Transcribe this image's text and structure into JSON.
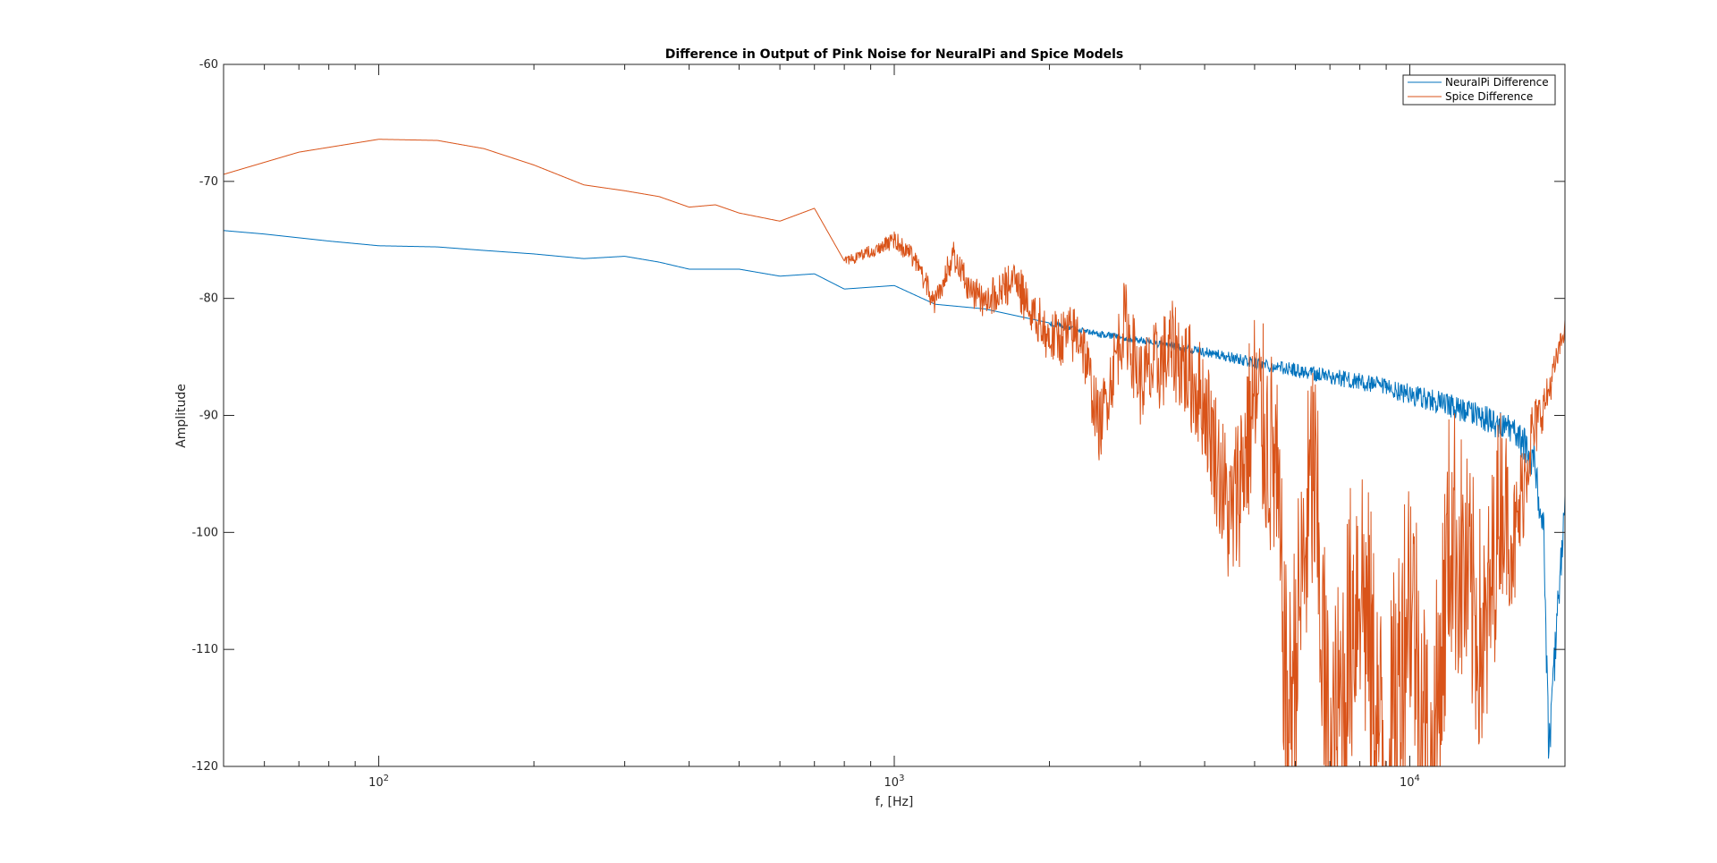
{
  "chart_data": {
    "type": "line",
    "title": "Difference in Output of Pink Noise for NeuralPi and Spice Models",
    "xlabel": "f, [Hz]",
    "ylabel": "Amplitude",
    "xscale": "log",
    "xlim": [
      50,
      20000
    ],
    "ylim": [
      -120,
      -60
    ],
    "y_ticks": [
      -120,
      -110,
      -100,
      -90,
      -80,
      -70,
      -60
    ],
    "y_tick_labels": [
      "-120",
      "-110",
      "-100",
      "-90",
      "-80",
      "-70",
      "-60"
    ],
    "x_major_ticks": [
      {
        "value": 100,
        "base": "10",
        "exp": "2"
      },
      {
        "value": 1000,
        "base": "10",
        "exp": "3"
      },
      {
        "value": 10000,
        "base": "10",
        "exp": "4"
      }
    ],
    "grid": false,
    "legend_position": "top-right",
    "series": [
      {
        "name": "NeuralPi Difference",
        "color": "#0072BD",
        "points": [
          [
            50,
            -74.2
          ],
          [
            60,
            -74.5
          ],
          [
            80,
            -75.1
          ],
          [
            100,
            -75.5
          ],
          [
            130,
            -75.6
          ],
          [
            160,
            -75.9
          ],
          [
            200,
            -76.2
          ],
          [
            250,
            -76.6
          ],
          [
            300,
            -76.4
          ],
          [
            350,
            -76.9
          ],
          [
            400,
            -77.5
          ],
          [
            500,
            -77.5
          ],
          [
            600,
            -78.1
          ],
          [
            700,
            -77.9
          ],
          [
            800,
            -79.2
          ],
          [
            1000,
            -78.9
          ],
          [
            1200,
            -80.5
          ],
          [
            1500,
            -80.9
          ],
          [
            2000,
            -82.1
          ],
          [
            2500,
            -83.0
          ],
          [
            3000,
            -83.5
          ],
          [
            4000,
            -84.5
          ],
          [
            5000,
            -85.4
          ],
          [
            6000,
            -86.0
          ],
          [
            8000,
            -87.0
          ],
          [
            10000,
            -88.0
          ],
          [
            12000,
            -89.0
          ],
          [
            14000,
            -90.0
          ],
          [
            16000,
            -91.2
          ],
          [
            17500,
            -93.5
          ],
          [
            18200,
            -100.0
          ],
          [
            18600,
            -118.5
          ],
          [
            19000,
            -112.0
          ],
          [
            19500,
            -104.0
          ],
          [
            20000,
            -97.5
          ]
        ],
        "noise_amplitude_db": [
          [
            2000,
            0.2
          ],
          [
            5000,
            0.5
          ],
          [
            10000,
            0.9
          ],
          [
            16000,
            1.3
          ],
          [
            17500,
            2.0
          ]
        ]
      },
      {
        "name": "Spice Difference",
        "color": "#D95319",
        "points": [
          [
            50,
            -69.4
          ],
          [
            70,
            -67.5
          ],
          [
            100,
            -66.4
          ],
          [
            130,
            -66.5
          ],
          [
            160,
            -67.2
          ],
          [
            200,
            -68.6
          ],
          [
            250,
            -70.3
          ],
          [
            300,
            -70.8
          ],
          [
            350,
            -71.3
          ],
          [
            400,
            -72.2
          ],
          [
            450,
            -72.0
          ],
          [
            500,
            -72.7
          ],
          [
            600,
            -73.4
          ],
          [
            700,
            -72.3
          ],
          [
            800,
            -76.8
          ],
          [
            900,
            -75.9
          ],
          [
            1000,
            -74.8
          ],
          [
            1100,
            -76.5
          ],
          [
            1200,
            -80.3
          ],
          [
            1300,
            -76.0
          ],
          [
            1400,
            -79.0
          ],
          [
            1500,
            -80.0
          ],
          [
            1700,
            -78.0
          ],
          [
            2000,
            -83.0
          ],
          [
            2300,
            -82.5
          ],
          [
            2500,
            -90.5
          ],
          [
            2800,
            -81.0
          ],
          [
            3000,
            -86.5
          ],
          [
            3500,
            -83.5
          ],
          [
            4000,
            -88.0
          ],
          [
            4500,
            -98.0
          ],
          [
            5000,
            -87.0
          ],
          [
            5500,
            -93.0
          ],
          [
            5800,
            -114.5
          ],
          [
            6500,
            -92.0
          ],
          [
            7000,
            -119.0
          ],
          [
            8000,
            -100.0
          ],
          [
            9000,
            -119.5
          ],
          [
            10000,
            -101.0
          ],
          [
            11000,
            -120.0
          ],
          [
            12000,
            -97.0
          ],
          [
            14000,
            -108.0
          ],
          [
            15000,
            -95.0
          ],
          [
            16000,
            -100.0
          ],
          [
            17000,
            -92.0
          ],
          [
            18500,
            -88.0
          ],
          [
            20000,
            -82.3
          ]
        ],
        "noise_amplitude_db": [
          [
            800,
            0.4
          ],
          [
            1500,
            1.5
          ],
          [
            2500,
            3.0
          ],
          [
            4000,
            5.0
          ],
          [
            5500,
            10.0
          ],
          [
            7000,
            13.0
          ],
          [
            10000,
            13.0
          ],
          [
            14000,
            11.0
          ],
          [
            16000,
            6.0
          ],
          [
            18000,
            2.0
          ],
          [
            20000,
            0.8
          ]
        ]
      }
    ]
  }
}
